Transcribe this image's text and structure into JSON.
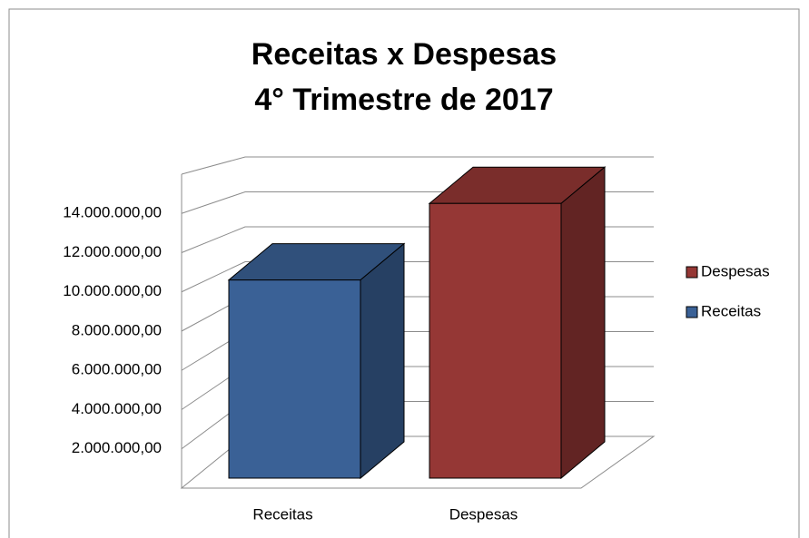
{
  "chart_data": {
    "type": "bar3d",
    "title": [
      "Receitas x Despesas",
      "4° Trimestre de 2017"
    ],
    "categories": [
      "Receitas",
      "Despesas"
    ],
    "series": [
      {
        "name": "Receitas",
        "color": "#3a6196",
        "values": [
          10100000,
          null
        ]
      },
      {
        "name": "Despesas",
        "color": "#953735",
        "values": [
          null,
          14000000
        ]
      }
    ],
    "ylim": [
      0,
      16000000
    ],
    "yticks": [
      {
        "value": 2000000,
        "label": "2.000.000,00"
      },
      {
        "value": 4000000,
        "label": "4.000.000,00"
      },
      {
        "value": 6000000,
        "label": "6.000.000,00"
      },
      {
        "value": 8000000,
        "label": "8.000.000,00"
      },
      {
        "value": 10000000,
        "label": "10.000.000,00"
      },
      {
        "value": 12000000,
        "label": "12.000.000,00"
      },
      {
        "value": 14000000,
        "label": "14.000.000,00"
      }
    ],
    "grid": true,
    "legend": "right"
  }
}
